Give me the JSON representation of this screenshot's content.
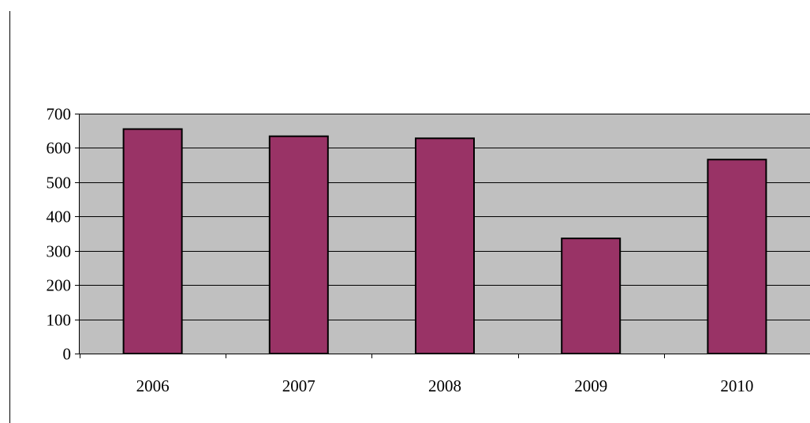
{
  "chart_data": {
    "type": "bar",
    "categories": [
      "2006",
      "2007",
      "2008",
      "2009",
      "2010"
    ],
    "values": [
      655,
      634,
      628,
      336,
      566
    ],
    "title": "",
    "xlabel": "",
    "ylabel": "",
    "ylim": [
      0,
      700
    ],
    "yticks": [
      0,
      100,
      200,
      300,
      400,
      500,
      600,
      700
    ],
    "grid": true,
    "legend": "none",
    "colors": {
      "bar": "#993366",
      "plot_background": "#c0c0c0",
      "gridline": "#000000",
      "bar_outline": "#000000"
    }
  }
}
